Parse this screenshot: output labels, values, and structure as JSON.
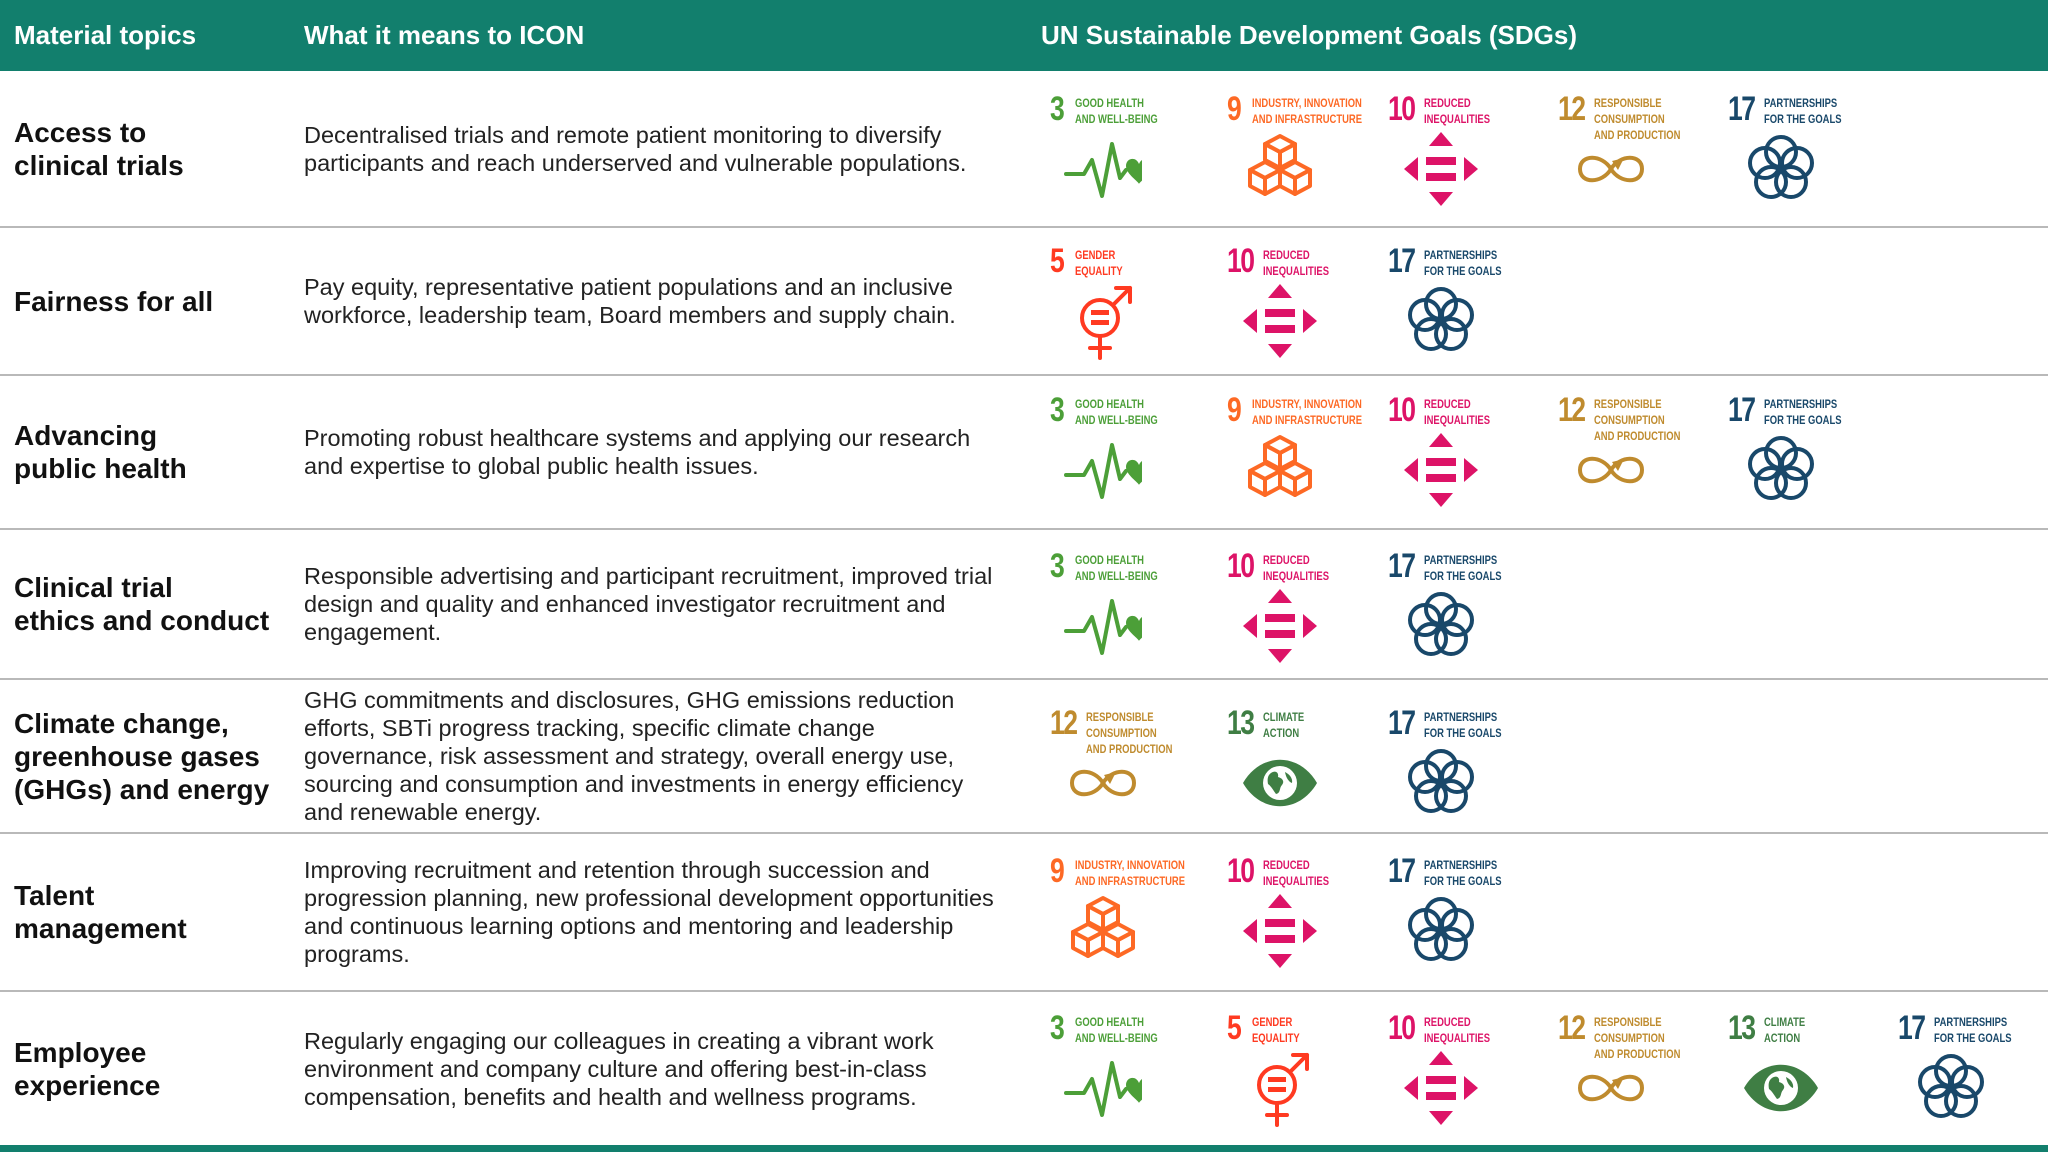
{
  "header": {
    "col_topics": "Material topics",
    "col_meaning": "What it means to ICON",
    "col_sdgs": "UN Sustainable Development Goals (SDGs)"
  },
  "sdg_catalog": {
    "3": {
      "number": "3",
      "label": "Good health\nand well-being",
      "color": "#4c9f38",
      "icon": "heartbeat-icon"
    },
    "5": {
      "number": "5",
      "label": "Gender\nequality",
      "color": "#ff3a21",
      "icon": "gender-equality-icon"
    },
    "9": {
      "number": "9",
      "label": "Industry, innovation\nand infrastructure",
      "color": "#fd6925",
      "icon": "cubes-icon"
    },
    "10": {
      "number": "10",
      "label": "Reduced\ninequalities",
      "color": "#dd1367",
      "icon": "arrows-equal-icon"
    },
    "12": {
      "number": "12",
      "label": "Responsible\nconsumption\nand production",
      "color": "#bf8b2e",
      "icon": "infinity-icon"
    },
    "13": {
      "number": "13",
      "label": "Climate\naction",
      "color": "#3f7e44",
      "icon": "eye-globe-icon"
    },
    "17": {
      "number": "17",
      "label": "Partnerships\nfor the goals",
      "color": "#19486a",
      "icon": "rings-icon"
    }
  },
  "rows": [
    {
      "topic": "Access to\nclinical trials",
      "description": "Decentralised trials and remote patient monitoring to diversify participants and reach underserved and vulnerable populations.",
      "sdgs": [
        "3",
        "9",
        "10",
        "12",
        "17"
      ]
    },
    {
      "topic": "Fairness for all",
      "description": "Pay equity, representative patient populations and an inclusive workforce, leadership team, Board members and supply chain.",
      "sdgs": [
        "5",
        "10",
        "17"
      ]
    },
    {
      "topic": "Advancing\npublic health",
      "description": "Promoting robust healthcare systems and applying our research and expertise to global public health issues.",
      "sdgs": [
        "3",
        "9",
        "10",
        "12",
        "17"
      ]
    },
    {
      "topic": "Clinical trial\nethics and conduct",
      "description": "Responsible advertising and participant recruitment, improved trial design and quality and enhanced investigator recruitment and engagement.",
      "sdgs": [
        "3",
        "10",
        "17"
      ]
    },
    {
      "topic": "Climate change,\ngreenhouse gases\n(GHGs) and energy",
      "description": "GHG commitments and disclosures, GHG emissions reduction efforts, SBTi progress tracking, specific climate change governance, risk assessment and strategy, overall energy use, sourcing and consumption and investments in energy efficiency and renewable energy.",
      "sdgs": [
        "12",
        "13",
        "17"
      ]
    },
    {
      "topic": "Talent\nmanagement",
      "description": "Improving recruitment and retention through succession and progression planning, new professional development opportunities and continuous learning options and mentoring and leadership programs.",
      "sdgs": [
        "9",
        "10",
        "17"
      ]
    },
    {
      "topic": "Employee\nexperience",
      "description": "Regularly engaging our colleagues in creating a vibrant work environment and company culture and offering best-in-class compensation, benefits and health and wellness programs.",
      "sdgs": [
        "3",
        "5",
        "10",
        "12",
        "13",
        "17"
      ]
    }
  ]
}
